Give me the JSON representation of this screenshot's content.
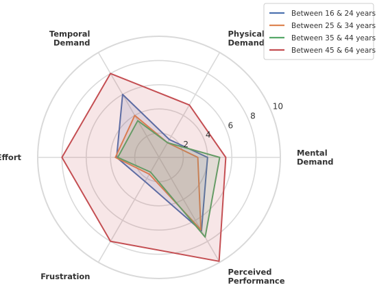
{
  "chart_data": {
    "type": "radar",
    "axes": [
      "Mental Demand",
      "Physical Demand",
      "Temporal Demand",
      "Effort",
      "Frustration",
      "Perceived Performance"
    ],
    "axis_labels": [
      [
        "Mental",
        "Demand"
      ],
      [
        "Physical",
        "Demand"
      ],
      [
        "Temporal",
        "Demand"
      ],
      [
        "Effort"
      ],
      [
        "Frustration"
      ],
      [
        "Perceived",
        "Performance"
      ]
    ],
    "rlim": [
      0,
      10
    ],
    "rticks": [
      2,
      4,
      6,
      8,
      10
    ],
    "rtick_labels": [
      "2",
      "4",
      "6",
      "8",
      "10"
    ],
    "grid": true,
    "legend_position": "top-right",
    "series": [
      {
        "name": "Between 16 & 24 years",
        "color": "#4c72b0",
        "values": [
          4.0,
          1.7,
          6.0,
          3.5,
          2.3,
          7.0
        ]
      },
      {
        "name": "Between 25 & 34 years",
        "color": "#dd8452",
        "values": [
          3.2,
          1.4,
          4.0,
          3.6,
          1.6,
          6.9
        ]
      },
      {
        "name": "Between 35 & 44 years",
        "color": "#55a868",
        "values": [
          5.0,
          1.4,
          3.5,
          3.4,
          1.4,
          7.6
        ]
      },
      {
        "name": "Between 45 & 64 years",
        "color": "#c44e52",
        "values": [
          5.5,
          5.0,
          8.0,
          8.0,
          8.0,
          9.9
        ]
      }
    ]
  }
}
